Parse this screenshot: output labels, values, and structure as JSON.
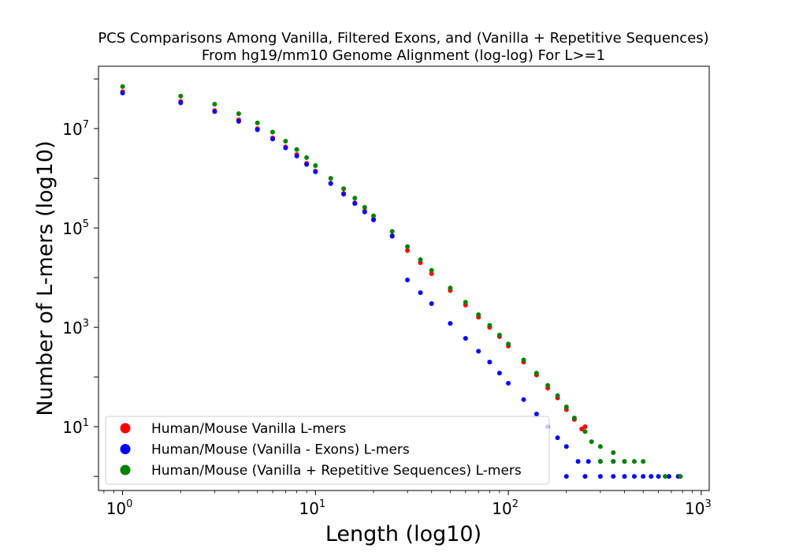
{
  "chart_data": {
    "type": "scatter",
    "title_lines": [
      "PCS Comparisons Among Vanilla, Filtered Exons, and (Vanilla + Repetitive Sequences)",
      "From hg19/mm10 Genome Alignment (log-log) For L>=1"
    ],
    "xlabel": "Length (log10)",
    "ylabel": "Number of L-mers (log10)",
    "x_scale": "log",
    "y_scale": "log",
    "xlim": [
      0.75,
      1100
    ],
    "ylim": [
      0.52,
      180000000
    ],
    "x_ticks": [
      {
        "value": 1,
        "base": "10",
        "exp": "0"
      },
      {
        "value": 10,
        "base": "10",
        "exp": "1"
      },
      {
        "value": 100,
        "base": "10",
        "exp": "2"
      },
      {
        "value": 1000,
        "base": "10",
        "exp": "3"
      }
    ],
    "y_ticks": [
      {
        "value": 10,
        "base": "10",
        "exp": "1"
      },
      {
        "value": 1000,
        "base": "10",
        "exp": "3"
      },
      {
        "value": 100000,
        "base": "10",
        "exp": "5"
      },
      {
        "value": 10000000,
        "base": "10",
        "exp": "7"
      }
    ],
    "grid": false,
    "legend_position": "lower-left",
    "series": [
      {
        "name": "Human/Mouse Vanilla L-mers",
        "color": "#ff0000",
        "points": [
          [
            1,
            55000000
          ],
          [
            2,
            35000000
          ],
          [
            3,
            23000000
          ],
          [
            4,
            15000000
          ],
          [
            5,
            10000000
          ],
          [
            6,
            6500000
          ],
          [
            7,
            4300000
          ],
          [
            8,
            3000000
          ],
          [
            9,
            2000000
          ],
          [
            10,
            1400000
          ],
          [
            12,
            800000
          ],
          [
            14,
            500000
          ],
          [
            16,
            320000
          ],
          [
            18,
            220000
          ],
          [
            20,
            150000
          ],
          [
            25,
            70000
          ],
          [
            30,
            35000
          ],
          [
            35,
            20000
          ],
          [
            40,
            12000
          ],
          [
            50,
            5500
          ],
          [
            60,
            2800
          ],
          [
            70,
            1600
          ],
          [
            80,
            1000
          ],
          [
            90,
            650
          ],
          [
            100,
            420
          ],
          [
            120,
            200
          ],
          [
            140,
            110
          ],
          [
            160,
            60
          ],
          [
            180,
            38
          ],
          [
            200,
            22
          ],
          [
            220,
            14
          ],
          [
            240,
            9
          ],
          [
            250,
            10
          ]
        ]
      },
      {
        "name": "Human/Mouse (Vanilla - Exons) L-mers",
        "color": "#0000ff",
        "points": [
          [
            1,
            52000000
          ],
          [
            2,
            33000000
          ],
          [
            3,
            22000000
          ],
          [
            4,
            14000000
          ],
          [
            5,
            9500000
          ],
          [
            6,
            6200000
          ],
          [
            7,
            4100000
          ],
          [
            8,
            2800000
          ],
          [
            9,
            1900000
          ],
          [
            10,
            1350000
          ],
          [
            12,
            780000
          ],
          [
            14,
            480000
          ],
          [
            16,
            310000
          ],
          [
            18,
            210000
          ],
          [
            20,
            145000
          ],
          [
            25,
            68000
          ],
          [
            30,
            9000
          ],
          [
            35,
            5000
          ],
          [
            40,
            3000
          ],
          [
            50,
            1200
          ],
          [
            60,
            600
          ],
          [
            70,
            330
          ],
          [
            80,
            200
          ],
          [
            90,
            120
          ],
          [
            100,
            75
          ],
          [
            120,
            35
          ],
          [
            140,
            18
          ],
          [
            160,
            10
          ],
          [
            180,
            6
          ],
          [
            200,
            4
          ],
          [
            230,
            2
          ],
          [
            260,
            2
          ],
          [
            300,
            2
          ],
          [
            350,
            2
          ],
          [
            400,
            2
          ],
          [
            200,
            1
          ],
          [
            250,
            1
          ],
          [
            300,
            1
          ],
          [
            350,
            1
          ],
          [
            400,
            1
          ],
          [
            450,
            1
          ],
          [
            500,
            1
          ],
          [
            550,
            1
          ],
          [
            600,
            1
          ],
          [
            680,
            1
          ],
          [
            760,
            1
          ]
        ]
      },
      {
        "name": "Human/Mouse (Vanilla + Repetitive Sequences) L-mers",
        "color": "#008000",
        "points": [
          [
            1,
            70000000
          ],
          [
            2,
            45000000
          ],
          [
            3,
            31000000
          ],
          [
            4,
            20000000
          ],
          [
            5,
            13000000
          ],
          [
            6,
            8500000
          ],
          [
            7,
            5600000
          ],
          [
            8,
            3800000
          ],
          [
            9,
            2600000
          ],
          [
            10,
            1800000
          ],
          [
            12,
            1000000
          ],
          [
            14,
            620000
          ],
          [
            16,
            400000
          ],
          [
            18,
            260000
          ],
          [
            20,
            175000
          ],
          [
            25,
            85000
          ],
          [
            30,
            42000
          ],
          [
            35,
            23000
          ],
          [
            40,
            14000
          ],
          [
            50,
            6200
          ],
          [
            60,
            3200
          ],
          [
            70,
            1800
          ],
          [
            80,
            1100
          ],
          [
            90,
            700
          ],
          [
            100,
            460
          ],
          [
            120,
            220
          ],
          [
            140,
            120
          ],
          [
            160,
            68
          ],
          [
            180,
            42
          ],
          [
            200,
            25
          ],
          [
            220,
            15
          ],
          [
            250,
            8
          ],
          [
            270,
            5
          ],
          [
            300,
            4
          ],
          [
            350,
            3
          ],
          [
            300,
            2
          ],
          [
            350,
            2
          ],
          [
            400,
            2
          ],
          [
            450,
            2
          ],
          [
            500,
            2
          ],
          [
            650,
            1
          ],
          [
            780,
            1
          ]
        ]
      }
    ]
  }
}
